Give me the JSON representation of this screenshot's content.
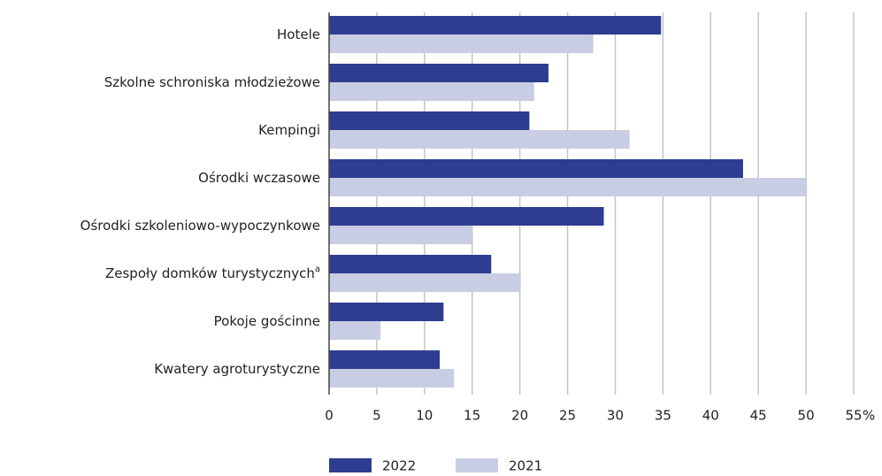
{
  "chart_data": {
    "type": "hbar",
    "categories": [
      "Hotele",
      "Szkolne schroniska młodzieżowe",
      "Kempingi",
      "Ośrodki wczasowe",
      "Ośrodki szkoleniowo-wypoczynkowe",
      "Zespoły domków turystycznych",
      "Pokoje gościnne",
      "Kwatery agroturystyczne"
    ],
    "category_superscripts": [
      null,
      null,
      null,
      null,
      null,
      "a",
      null,
      null
    ],
    "series": [
      {
        "name": "2022",
        "color": "#2e3d8f",
        "values": [
          34.8,
          23.0,
          21.0,
          43.4,
          28.8,
          17.0,
          12.0,
          11.6
        ]
      },
      {
        "name": "2021",
        "color": "#c9cde3",
        "values": [
          27.7,
          21.5,
          31.5,
          50.1,
          15.0,
          20.1,
          5.4,
          13.1
        ]
      }
    ],
    "xlim": [
      0,
      55
    ],
    "xticks": [
      0,
      5,
      10,
      15,
      20,
      25,
      30,
      35,
      40,
      45,
      50,
      55
    ],
    "x_unit": "%",
    "grid": true
  }
}
